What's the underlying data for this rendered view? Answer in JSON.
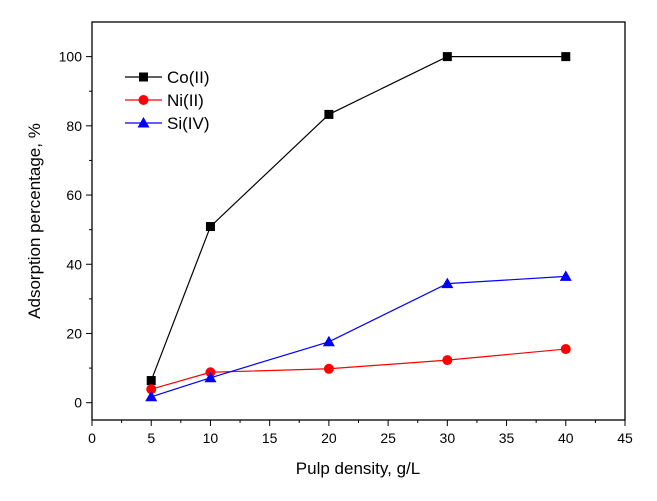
{
  "chart_data": {
    "type": "line",
    "title": "",
    "xlabel": "Pulp density, g/L",
    "ylabel": "Adsorption percentage, %",
    "xlim": [
      0,
      45
    ],
    "ylim": [
      -5,
      110
    ],
    "xticks": [
      0,
      5,
      10,
      15,
      20,
      25,
      30,
      35,
      40,
      45
    ],
    "yticks": [
      0,
      20,
      40,
      60,
      80,
      100
    ],
    "grid": false,
    "legend_placement": "top-left",
    "x": [
      5,
      10,
      20,
      30,
      40
    ],
    "series": [
      {
        "name": "Co(II)",
        "values": [
          6.4,
          50.9,
          83.3,
          100,
          100
        ],
        "color": "#000000",
        "marker": "square"
      },
      {
        "name": "Ni(II)",
        "values": [
          3.9,
          8.8,
          9.8,
          12.3,
          15.5
        ],
        "color": "#ff0000",
        "marker": "circle"
      },
      {
        "name": "Si(IV)",
        "values": [
          1.7,
          7.2,
          17.6,
          34.4,
          36.5
        ],
        "color": "#0000ff",
        "marker": "triangle"
      }
    ]
  }
}
